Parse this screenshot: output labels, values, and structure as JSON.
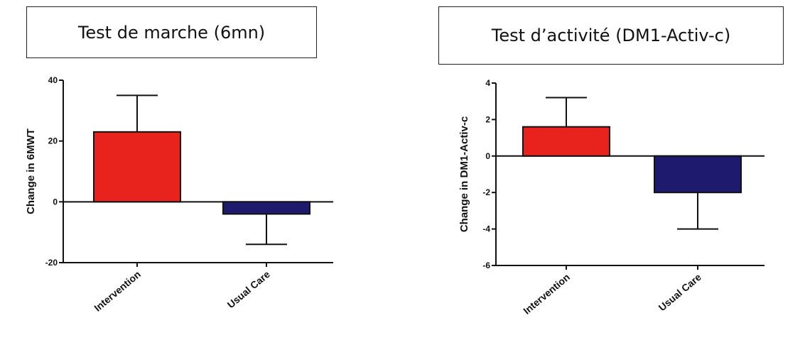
{
  "panels": {
    "left_title": "Test de marche (6mn)",
    "right_title": "Test d’activité (DM1-Activ-c)"
  },
  "chart_data": [
    {
      "type": "bar",
      "categories": [
        "Intervention",
        "Usual Care"
      ],
      "values": [
        23,
        -4
      ],
      "errors_upper": [
        12,
        0
      ],
      "errors_lower": [
        0,
        10
      ],
      "colors": [
        "#e8231e",
        "#1e1a6e"
      ],
      "title": "Test de marche (6mn)",
      "xlabel": "",
      "ylabel": "Change in  6MWT",
      "ylim": [
        -20,
        40
      ],
      "yticks": [
        -20,
        0,
        20,
        40
      ],
      "grid": false
    },
    {
      "type": "bar",
      "categories": [
        "Intervention",
        "Usual Care"
      ],
      "values": [
        1.6,
        -2.0
      ],
      "errors_upper": [
        1.6,
        0
      ],
      "errors_lower": [
        0,
        2.0
      ],
      "colors": [
        "#e8231e",
        "#1e1a6e"
      ],
      "title": "Test d’activité (DM1-Activ-c)",
      "xlabel": "",
      "ylabel": "Change in  DM1-Activ-c",
      "ylim": [
        -6,
        4
      ],
      "yticks": [
        -6,
        -4,
        -2,
        0,
        2,
        4
      ],
      "grid": false
    }
  ]
}
